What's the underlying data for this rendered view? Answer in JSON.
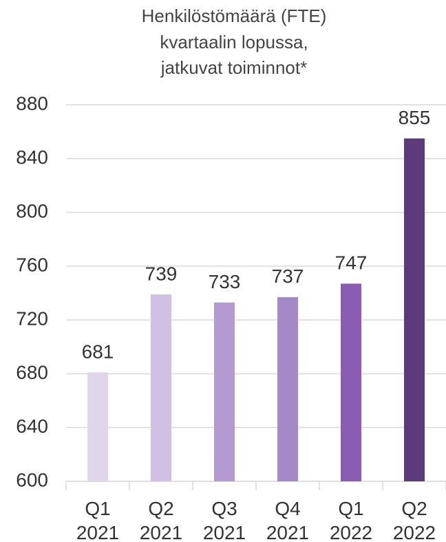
{
  "chart_data": {
    "type": "bar",
    "title": [
      "Henkilöstömäärä (FTE)",
      "kvartaalin lopussa,",
      "jatkuvat toiminnot*"
    ],
    "categories": [
      "Q1 2021",
      "Q2 2021",
      "Q3 2021",
      "Q4 2021",
      "Q1 2022",
      "Q2 2022"
    ],
    "values": [
      681,
      739,
      733,
      737,
      747,
      855
    ],
    "colors": [
      "#e1d5ec",
      "#d1c0e3",
      "#b49ad0",
      "#a588c7",
      "#8a5cb4",
      "#5c3a7c"
    ],
    "ylim": [
      600,
      880
    ],
    "yticks": [
      600,
      640,
      680,
      720,
      760,
      800,
      840,
      880
    ],
    "grid": true
  }
}
